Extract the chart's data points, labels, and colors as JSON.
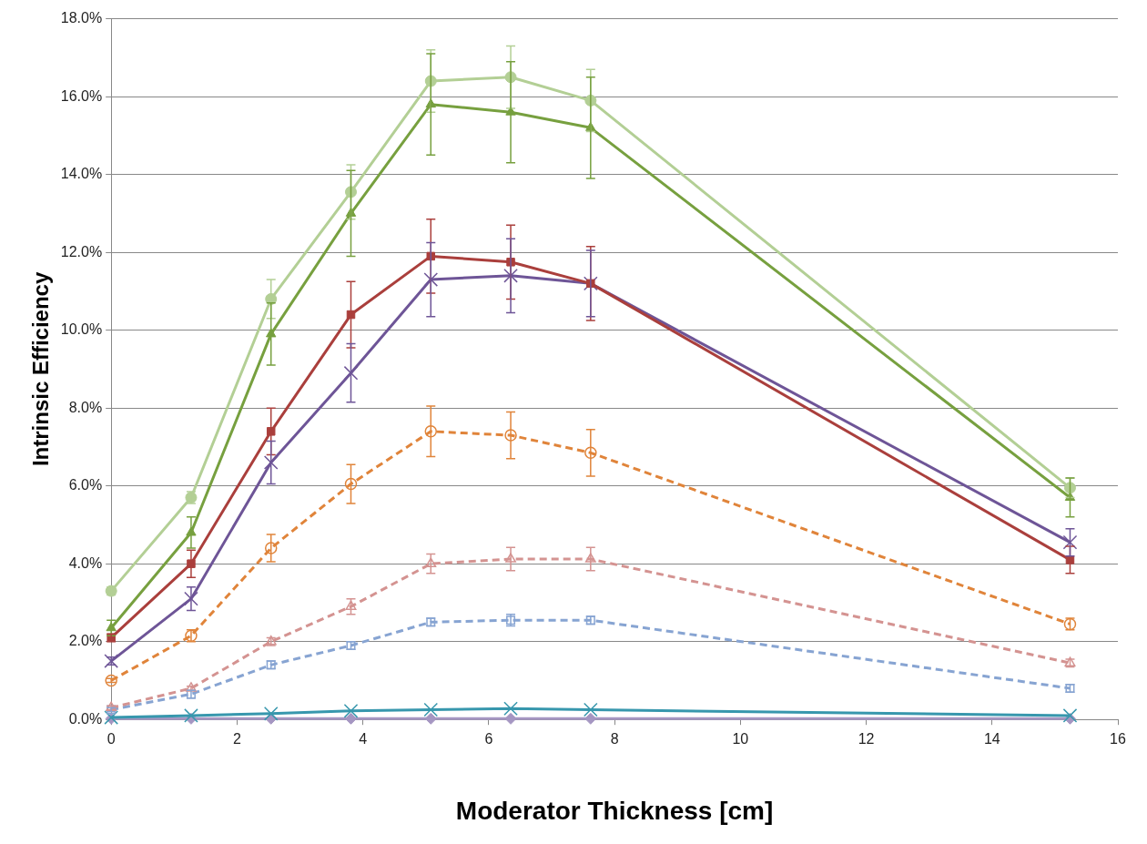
{
  "chart_data": {
    "type": "line",
    "xlabel": "Moderator Thickness [cm]",
    "ylabel": "Intrinsic Efficiency",
    "x": [
      0,
      1.27,
      2.54,
      3.81,
      5.08,
      6.35,
      7.62,
      15.24
    ],
    "series": [
      {
        "color": "#b3cf95",
        "marker": "circle",
        "line_style": "solid",
        "values": [
          3.3,
          5.7,
          10.8,
          13.55,
          16.4,
          16.5,
          15.9,
          5.95
        ],
        "errors": [
          0.1,
          0.15,
          0.5,
          0.7,
          0.8,
          0.8,
          0.8,
          0.25
        ]
      },
      {
        "color": "#77a03f",
        "marker": "triangle",
        "line_style": "solid",
        "values": [
          2.35,
          4.8,
          9.9,
          13.0,
          15.8,
          15.6,
          15.2,
          5.7
        ],
        "errors": [
          0.2,
          0.4,
          0.8,
          1.1,
          1.3,
          1.3,
          1.3,
          0.5
        ]
      },
      {
        "color": "#aa3f3c",
        "marker": "square",
        "line_style": "solid",
        "values": [
          2.1,
          4.0,
          7.4,
          10.4,
          11.9,
          11.75,
          11.2,
          4.1
        ],
        "errors": [
          0.1,
          0.35,
          0.6,
          0.85,
          0.95,
          0.95,
          0.95,
          0.35
        ]
      },
      {
        "color": "#6e5597",
        "marker": "cross",
        "line_style": "solid",
        "values": [
          1.5,
          3.1,
          6.6,
          8.9,
          11.3,
          11.4,
          11.2,
          4.55
        ],
        "errors": [
          0.1,
          0.3,
          0.55,
          0.75,
          0.95,
          0.95,
          0.85,
          0.35
        ]
      },
      {
        "color": "#e0843a",
        "marker": "circle",
        "line_style": "dashed",
        "values": [
          1.0,
          2.15,
          4.4,
          6.05,
          7.4,
          7.3,
          6.85,
          2.45
        ],
        "errors": [
          0.05,
          0.15,
          0.35,
          0.5,
          0.65,
          0.6,
          0.6,
          0.15
        ]
      },
      {
        "color": "#d49391",
        "marker": "triangle",
        "line_style": "dashed",
        "values": [
          0.3,
          0.8,
          2.0,
          2.9,
          4.0,
          4.12,
          4.12,
          1.45
        ],
        "errors": [
          0.05,
          0.05,
          0.1,
          0.2,
          0.25,
          0.3,
          0.3,
          0.1
        ]
      },
      {
        "color": "#87a4d2",
        "marker": "square",
        "line_style": "dashed",
        "values": [
          0.25,
          0.65,
          1.4,
          1.9,
          2.5,
          2.55,
          2.55,
          0.8
        ],
        "errors": [
          0.05,
          0.1,
          0.1,
          0.1,
          0.1,
          0.15,
          0.1,
          0.1
        ]
      },
      {
        "color": "#3797ad",
        "marker": "cross",
        "line_style": "solid",
        "values": [
          0.05,
          0.1,
          0.15,
          0.22,
          0.25,
          0.28,
          0.25,
          0.1
        ]
      },
      {
        "color": "#a596c2",
        "marker": "diamond",
        "line_style": "solid",
        "values": [
          0.02,
          0.02,
          0.02,
          0.02,
          0.02,
          0.02,
          0.02,
          0.02
        ]
      }
    ],
    "xlim": [
      0,
      16
    ],
    "xticks": [
      0,
      2,
      4,
      6,
      8,
      10,
      12,
      14,
      16
    ],
    "ylim": [
      0,
      18
    ],
    "yticks": [
      {
        "value": 0,
        "label": "0.0%"
      },
      {
        "value": 2,
        "label": "2.0%"
      },
      {
        "value": 4,
        "label": "4.0%"
      },
      {
        "value": 6,
        "label": "6.0%"
      },
      {
        "value": 8,
        "label": "8.0%"
      },
      {
        "value": 10,
        "label": "10.0%"
      },
      {
        "value": 12,
        "label": "12.0%"
      },
      {
        "value": 14,
        "label": "14.0%"
      },
      {
        "value": 16,
        "label": "16.0%"
      },
      {
        "value": 18,
        "label": "18.0%"
      }
    ],
    "grid": "y",
    "legend": false
  }
}
